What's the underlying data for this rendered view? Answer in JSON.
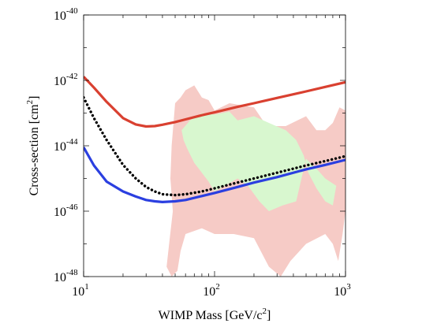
{
  "chart_data": {
    "type": "line",
    "title": "",
    "xlabel": "WIMP Mass [GeV/c",
    "xlabel_sup": "2",
    "xlabel_end": "]",
    "ylabel": "Cross-section [cm",
    "ylabel_sup": "2",
    "ylabel_end": "]",
    "xscale": "log",
    "yscale": "log",
    "xlim": [
      10,
      1000
    ],
    "ylim": [
      1e-48,
      1e-40
    ],
    "grid": false,
    "legend": "none",
    "x_ticks": [
      {
        "value": 10,
        "base": "10",
        "exp": "1"
      },
      {
        "value": 100,
        "base": "10",
        "exp": "2"
      },
      {
        "value": 1000,
        "base": "10",
        "exp": "3"
      }
    ],
    "y_ticks": [
      {
        "value": 1e-40,
        "base": "10",
        "exp": "-40"
      },
      {
        "value": 1e-42,
        "base": "10",
        "exp": "-42"
      },
      {
        "value": 1e-44,
        "base": "10",
        "exp": "-44"
      },
      {
        "value": 1e-46,
        "base": "10",
        "exp": "-46"
      },
      {
        "value": 1e-48,
        "base": "10",
        "exp": "-48"
      }
    ],
    "series": [
      {
        "color": "#d94030",
        "style": "solid",
        "x": [
          10,
          12,
          15,
          20,
          25,
          30,
          35,
          40,
          50,
          60,
          80,
          100,
          150,
          200,
          300,
          500,
          700,
          1000
        ],
        "y": [
          1.3e-42,
          6e-43,
          2.2e-43,
          7e-44,
          4.5e-44,
          3.9e-44,
          4e-44,
          4.4e-44,
          5.3e-44,
          6.4e-44,
          8.6e-44,
          1.05e-43,
          1.55e-43,
          2e-43,
          2.9e-43,
          4.6e-43,
          6.3e-43,
          8.8e-43
        ]
      },
      {
        "color": "#000000",
        "style": "dotted",
        "x": [
          10,
          12,
          15,
          20,
          25,
          30,
          35,
          40,
          50,
          60,
          80,
          100,
          150,
          200,
          300,
          500,
          700,
          1000
        ],
        "y": [
          3e-43,
          7e-44,
          1.5e-44,
          2.6e-45,
          1e-45,
          5.5e-46,
          4e-46,
          3.3e-46,
          3.1e-46,
          3.3e-46,
          4e-46,
          5e-46,
          7.5e-46,
          1e-45,
          1.5e-45,
          2.5e-45,
          3.4e-45,
          4.8e-45
        ]
      },
      {
        "color": "#2b3fe0",
        "style": "solid",
        "x": [
          10,
          12,
          15,
          20,
          25,
          30,
          35,
          40,
          50,
          60,
          80,
          100,
          150,
          200,
          300,
          500,
          700,
          1000
        ],
        "y": [
          9e-45,
          2.5e-45,
          8e-46,
          4e-46,
          2.8e-46,
          2.2e-46,
          2e-46,
          1.9e-46,
          2e-46,
          2.2e-46,
          2.9e-46,
          3.6e-46,
          5.5e-46,
          7.5e-46,
          1.1e-45,
          1.9e-45,
          2.6e-45,
          3.7e-45
        ]
      }
    ],
    "regions": [
      {
        "color": "#f6cbc6",
        "polygon": [
          [
            45,
            1e-47
          ],
          [
            43,
            2e-48
          ],
          [
            47,
            1e-48
          ],
          [
            52,
            1.5e-48
          ],
          [
            55,
            6e-48
          ],
          [
            60,
            2e-47
          ],
          [
            80,
            3e-47
          ],
          [
            100,
            2e-47
          ],
          [
            140,
            2e-47
          ],
          [
            200,
            1.5e-47
          ],
          [
            260,
            2e-48
          ],
          [
            320,
            1e-48
          ],
          [
            380,
            3e-48
          ],
          [
            500,
            1e-47
          ],
          [
            700,
            2e-47
          ],
          [
            800,
            1e-47
          ],
          [
            880,
            3e-48
          ],
          [
            950,
            2e-47
          ],
          [
            1000,
            1e-46
          ],
          [
            1000,
            1e-45
          ],
          [
            1000,
            1.2e-43
          ],
          [
            900,
            1.5e-43
          ],
          [
            800,
            5e-44
          ],
          [
            700,
            3e-44
          ],
          [
            600,
            3e-44
          ],
          [
            500,
            8e-44
          ],
          [
            350,
            4e-44
          ],
          [
            250,
            4e-44
          ],
          [
            200,
            1.5e-43
          ],
          [
            130,
            2e-43
          ],
          [
            100,
            1.2e-43
          ],
          [
            90,
            2.5e-43
          ],
          [
            80,
            3e-43
          ],
          [
            70,
            7e-43
          ],
          [
            60,
            5e-43
          ],
          [
            55,
            3e-43
          ],
          [
            50,
            2e-43
          ],
          [
            47,
            1e-44
          ],
          [
            46,
            1e-45
          ],
          [
            48,
            1e-46
          ]
        ]
      },
      {
        "color": "#d8f7cf",
        "polygon": [
          [
            56,
            3e-44
          ],
          [
            65,
            6e-44
          ],
          [
            80,
            1e-43
          ],
          [
            100,
            9e-44
          ],
          [
            130,
            1.1e-43
          ],
          [
            150,
            6e-44
          ],
          [
            200,
            8e-44
          ],
          [
            260,
            5e-44
          ],
          [
            350,
            3e-44
          ],
          [
            420,
            1.5e-44
          ],
          [
            480,
            5e-45
          ],
          [
            520,
            1.5e-45
          ],
          [
            600,
            5e-46
          ],
          [
            700,
            2e-46
          ],
          [
            800,
            1.5e-46
          ],
          [
            850,
            6e-46
          ],
          [
            700,
            1e-45
          ],
          [
            600,
            2e-45
          ],
          [
            500,
            4e-45
          ],
          [
            420,
            2e-46
          ],
          [
            330,
            1.5e-46
          ],
          [
            260,
            1e-46
          ],
          [
            220,
            2e-46
          ],
          [
            180,
            6e-46
          ],
          [
            150,
            1e-45
          ],
          [
            120,
            6e-46
          ],
          [
            100,
            4e-46
          ],
          [
            90,
            8e-46
          ],
          [
            80,
            1.5e-45
          ],
          [
            70,
            3e-45
          ],
          [
            62,
            8e-45
          ],
          [
            58,
            1.5e-44
          ]
        ]
      }
    ]
  }
}
